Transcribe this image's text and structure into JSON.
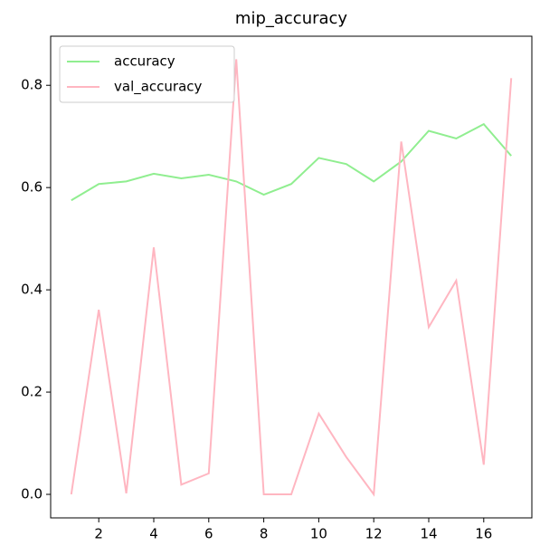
{
  "chart_data": {
    "type": "line",
    "title": "mip_accuracy",
    "x": [
      1,
      2,
      3,
      4,
      5,
      6,
      7,
      8,
      9,
      10,
      11,
      12,
      13,
      14,
      15,
      16,
      17
    ],
    "series": [
      {
        "name": "accuracy",
        "color": "#90ee90",
        "values": [
          0.575,
          0.607,
          0.612,
          0.627,
          0.618,
          0.625,
          0.612,
          0.586,
          0.607,
          0.658,
          0.646,
          0.612,
          0.651,
          0.711,
          0.696,
          0.724,
          0.662
        ]
      },
      {
        "name": "val_accuracy",
        "color": "#ffb6c1",
        "values": [
          0.0,
          0.361,
          0.002,
          0.483,
          0.019,
          0.041,
          0.851,
          0.0,
          0.0,
          0.158,
          0.073,
          0.0,
          0.69,
          0.327,
          0.418,
          0.058,
          0.814
        ]
      }
    ],
    "xlim": [
      0.25,
      17.75
    ],
    "xticks": [
      2,
      4,
      6,
      8,
      10,
      12,
      14,
      16
    ],
    "ylim": [
      -0.046,
      0.896
    ],
    "yticks": [
      {
        "value": 0,
        "label": "0.0"
      },
      {
        "value": 0.2,
        "label": "0.2"
      },
      {
        "value": 0.4,
        "label": "0.4"
      },
      {
        "value": 0.6,
        "label": "0.6"
      },
      {
        "value": 0.8,
        "label": "0.8"
      }
    ],
    "legend": "upper-left"
  }
}
